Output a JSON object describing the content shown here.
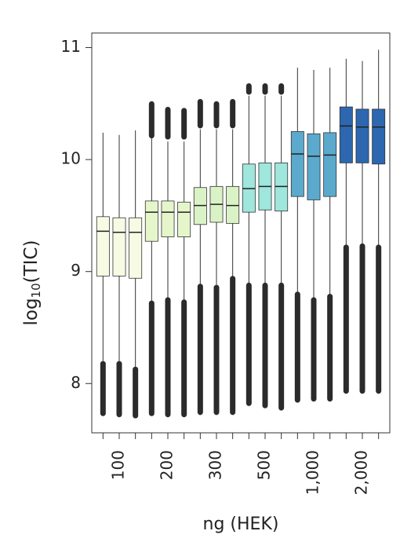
{
  "chart_data": {
    "type": "box",
    "ylabel": [
      "log",
      "10",
      "(TIC)"
    ],
    "xlabel": "ng (HEK)",
    "categories": [
      null,
      "100",
      null,
      null,
      "200",
      null,
      null,
      "300",
      null,
      null,
      "500",
      null,
      null,
      "1,000",
      null,
      null,
      "2,000",
      null
    ],
    "ylim": [
      7.56,
      11.13
    ],
    "yticks": [
      8,
      9,
      10,
      11
    ],
    "boxes": [
      {
        "color": "#f7fbe3",
        "whislo": 8.2,
        "q1": 8.96,
        "med": 9.36,
        "q3": 9.49,
        "whishi": 10.24,
        "low_outliers": [
          8.18,
          7.73
        ],
        "high_outliers": null
      },
      {
        "color": "#f7fbe3",
        "whislo": 8.2,
        "q1": 8.96,
        "med": 9.35,
        "q3": 9.48,
        "whishi": 10.22,
        "low_outliers": [
          8.18,
          7.72
        ],
        "high_outliers": null
      },
      {
        "color": "#f7fbe3",
        "whislo": 8.15,
        "q1": 8.94,
        "med": 9.35,
        "q3": 9.48,
        "whishi": 10.26,
        "low_outliers": [
          8.13,
          7.71
        ],
        "high_outliers": null
      },
      {
        "color": "#e6f6cb",
        "whislo": 8.73,
        "q1": 9.27,
        "med": 9.53,
        "q3": 9.63,
        "whishi": 10.2,
        "low_outliers": [
          8.72,
          7.73
        ],
        "high_outliers": [
          10.21,
          10.5
        ]
      },
      {
        "color": "#e6f6cb",
        "whislo": 8.75,
        "q1": 9.31,
        "med": 9.53,
        "q3": 9.63,
        "whishi": 10.16,
        "low_outliers": [
          8.75,
          7.72
        ],
        "high_outliers": [
          10.2,
          10.45
        ]
      },
      {
        "color": "#e6f6cb",
        "whislo": 8.75,
        "q1": 9.31,
        "med": 9.53,
        "q3": 9.62,
        "whishi": 10.16,
        "low_outliers": [
          8.73,
          7.72
        ],
        "high_outliers": [
          10.2,
          10.44
        ]
      },
      {
        "color": "#daf3c6",
        "whislo": 8.88,
        "q1": 9.42,
        "med": 9.59,
        "q3": 9.75,
        "whishi": 10.27,
        "low_outliers": [
          8.87,
          7.74
        ],
        "high_outliers": [
          10.3,
          10.52
        ]
      },
      {
        "color": "#daf3c6",
        "whislo": 8.88,
        "q1": 9.44,
        "med": 9.6,
        "q3": 9.76,
        "whishi": 10.27,
        "low_outliers": [
          8.86,
          7.74
        ],
        "high_outliers": [
          10.3,
          10.5
        ]
      },
      {
        "color": "#daf3c6",
        "whislo": 8.95,
        "q1": 9.43,
        "med": 9.59,
        "q3": 9.76,
        "whishi": 10.27,
        "low_outliers": [
          8.94,
          7.74
        ],
        "high_outliers": [
          10.3,
          10.52
        ]
      },
      {
        "color": "#9fe6dc",
        "whislo": 8.88,
        "q1": 9.53,
        "med": 9.74,
        "q3": 9.96,
        "whishi": 10.57,
        "low_outliers": [
          8.88,
          7.82
        ],
        "high_outliers": [
          10.6,
          10.66
        ]
      },
      {
        "color": "#9fe6dc",
        "whislo": 8.88,
        "q1": 9.55,
        "med": 9.76,
        "q3": 9.97,
        "whishi": 10.57,
        "low_outliers": [
          8.88,
          7.8
        ],
        "high_outliers": [
          10.6,
          10.66
        ]
      },
      {
        "color": "#9fe6dc",
        "whislo": 8.88,
        "q1": 9.54,
        "med": 9.76,
        "q3": 9.97,
        "whishi": 10.57,
        "low_outliers": [
          8.88,
          7.78
        ],
        "high_outliers": [
          10.6,
          10.66
        ]
      },
      {
        "color": "#5ba9cd",
        "whislo": 8.8,
        "q1": 9.67,
        "med": 10.05,
        "q3": 10.25,
        "whishi": 10.82,
        "low_outliers": [
          8.8,
          7.85
        ],
        "high_outliers": null
      },
      {
        "color": "#5ba9cd",
        "whislo": 8.75,
        "q1": 9.64,
        "med": 10.03,
        "q3": 10.23,
        "whishi": 10.8,
        "low_outliers": [
          8.75,
          7.86
        ],
        "high_outliers": null
      },
      {
        "color": "#5ba9cd",
        "whislo": 8.78,
        "q1": 9.67,
        "med": 10.04,
        "q3": 10.24,
        "whishi": 10.82,
        "low_outliers": [
          8.78,
          7.86
        ],
        "high_outliers": null
      },
      {
        "color": "#2c67b0",
        "whislo": 9.24,
        "q1": 9.97,
        "med": 10.3,
        "q3": 10.47,
        "whishi": 10.9,
        "low_outliers": [
          9.22,
          7.93
        ],
        "high_outliers": null
      },
      {
        "color": "#2c67b0",
        "whislo": 9.25,
        "q1": 9.97,
        "med": 10.29,
        "q3": 10.45,
        "whishi": 10.88,
        "low_outliers": [
          9.23,
          7.93
        ],
        "high_outliers": null
      },
      {
        "color": "#2c67b0",
        "whislo": 9.24,
        "q1": 9.96,
        "med": 10.29,
        "q3": 10.45,
        "whishi": 10.98,
        "low_outliers": [
          9.22,
          7.93
        ],
        "high_outliers": null
      }
    ]
  }
}
